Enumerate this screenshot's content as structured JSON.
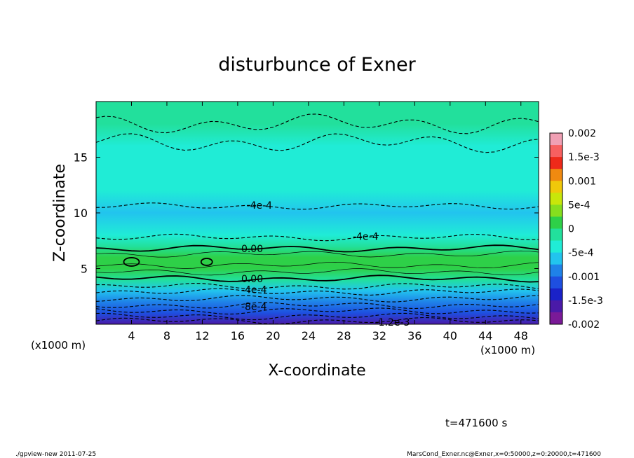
{
  "chart_data": {
    "type": "heatmap",
    "title": "disturbunce of Exner",
    "xlabel": "X-coordinate",
    "ylabel": "Z-coordinate",
    "x_unit": "(x1000 m)",
    "y_unit": "(x1000 m)",
    "xlim": [
      0,
      50
    ],
    "ylim": [
      0,
      20
    ],
    "x_ticks": [
      "4",
      "8",
      "12",
      "16",
      "20",
      "24",
      "28",
      "32",
      "36",
      "40",
      "44",
      "48"
    ],
    "y_ticks": [
      "5",
      "10",
      "15"
    ],
    "colorbar": {
      "labels": [
        "0.002",
        "1.5e-3",
        "0.001",
        "5e-4",
        "0",
        "-5e-4",
        "-0.001",
        "-1.5e-3",
        "-0.002"
      ],
      "colors": [
        "#f0a0b4",
        "#f76060",
        "#ee2a1a",
        "#f08a10",
        "#f0c80a",
        "#c8e60a",
        "#86de1e",
        "#2ed048",
        "#22e09c",
        "#20ecd6",
        "#22c4ee",
        "#1f82e8",
        "#1e4fe0",
        "#1a22c8",
        "#4a1aa8",
        "#7a1a98"
      ]
    },
    "profile_z_km": [
      0,
      1,
      2,
      3,
      4,
      5,
      6,
      7,
      8,
      10,
      12,
      14,
      16,
      18,
      20
    ],
    "profile_value": [
      -0.0015,
      -0.0012,
      -0.0009,
      -0.0006,
      -0.0001,
      0.0002,
      0.0001,
      -0.0001,
      -0.0004,
      -0.0005,
      -0.00045,
      -0.0003,
      -0.00025,
      -0.0002,
      -0.00018
    ],
    "contour_labels": [
      {
        "text": "-4e-4",
        "x": 17,
        "z": 10.7
      },
      {
        "text": "-4e-4",
        "x": 29,
        "z": 7.9
      },
      {
        "text": "0.00",
        "x": 16.4,
        "z": 6.8
      },
      {
        "text": "0.00",
        "x": 16.4,
        "z": 4.1
      },
      {
        "text": "-4e-4",
        "x": 16.4,
        "z": 3.1
      },
      {
        "text": "-8e-4",
        "x": 16.4,
        "z": 1.6
      },
      {
        "text": "-1.2e-3",
        "x": 31.5,
        "z": 0.2
      }
    ]
  },
  "time_label": "t=471600 s",
  "footer": {
    "left": "./gpview-new   2011-07-25",
    "right": "MarsCond_Exner.nc@Exner,x=0:50000,z=0:20000,t=471600"
  }
}
